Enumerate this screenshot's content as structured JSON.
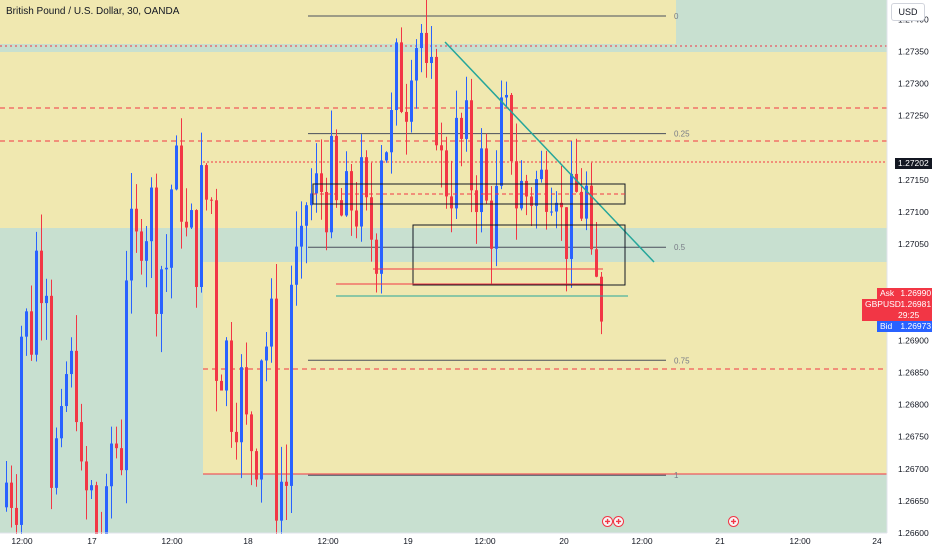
{
  "header": {
    "title": "British Pound / U.S. Dollar, 30, OANDA",
    "currency_button": "USD"
  },
  "price_axis": {
    "labels": [
      "1.27400",
      "1.27350",
      "1.27300",
      "1.27250",
      "1.27150",
      "1.27100",
      "1.27050",
      "1.26900",
      "1.26850",
      "1.26800",
      "1.26750",
      "1.26700",
      "1.26650",
      "1.26600"
    ],
    "current_price": "1.27202",
    "ask_label": "Ask",
    "ask_price": "1.26990",
    "symbol": "GBPUSD",
    "last_price": "1.26981",
    "countdown": "29:25",
    "bid_label": "Bid",
    "bid_price": "1.26973"
  },
  "time_axis": {
    "labels": [
      "12:00",
      "17",
      "12:00",
      "18",
      "12:00",
      "19",
      "12:00",
      "20",
      "12:00",
      "21",
      "12:00",
      "24"
    ]
  },
  "fib_levels": [
    {
      "label": "0",
      "price": 1.27405
    },
    {
      "label": "0.25",
      "price": 1.27222
    },
    {
      "label": "0.5",
      "price": 1.27045
    },
    {
      "label": "0.75",
      "price": 1.26869
    },
    {
      "label": "1",
      "price": 1.2669
    }
  ],
  "colors": {
    "bull": "#2962ff",
    "bear": "#f23645",
    "zone_yellow": "#f0e8b0",
    "zone_green": "#c8e0d0",
    "trendline": "#26a69a",
    "fib_line": "#4a4f5c"
  },
  "chart_data": {
    "type": "candlestick",
    "symbol": "GBPUSD",
    "interval": "30",
    "yrange": [
      1.266,
      1.2743
    ],
    "current_price": 1.27202,
    "bid": 1.26973,
    "ask": 1.2699,
    "series": [
      {
        "values": [
          1.2668,
          1.2692,
          1.2703,
          1.2672,
          1.2684,
          1.2665,
          1.266,
          1.2674,
          1.2703,
          1.271,
          1.2702,
          1.2714,
          1.2705,
          1.2712,
          1.2688,
          1.2682,
          1.2675,
          1.269,
          1.2668,
          1.27,
          1.2712,
          1.2714,
          1.2709,
          1.2712,
          1.2707,
          1.2722,
          1.273,
          1.2738,
          1.2727,
          1.2716,
          1.272,
          1.2716,
          1.271,
          1.2722,
          1.2713,
          1.2714,
          1.2718,
          1.2708,
          1.2712,
          1.2697
        ]
      }
    ]
  }
}
